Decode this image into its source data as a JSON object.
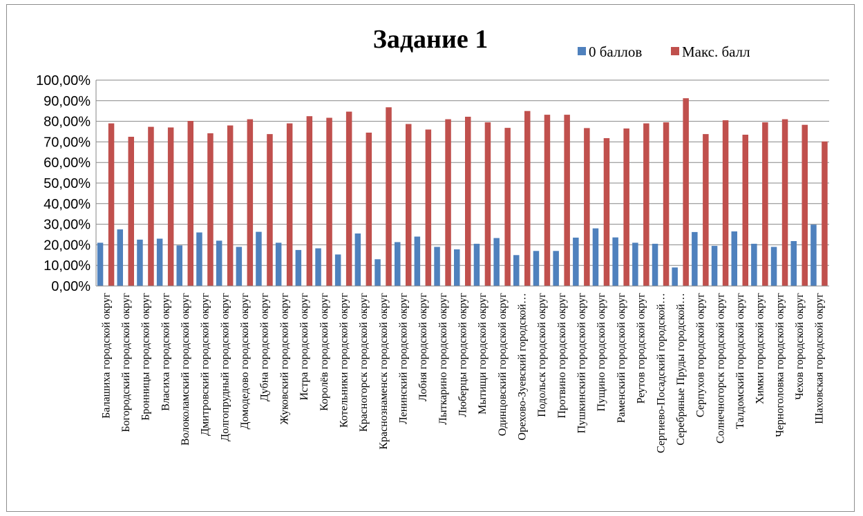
{
  "chart_data": {
    "type": "bar",
    "title": "Задание 1",
    "xlabel": "",
    "ylabel": "",
    "ylim": [
      0,
      1
    ],
    "yticks": [
      "0,00%",
      "10,00%",
      "20,00%",
      "30,00%",
      "40,00%",
      "50,00%",
      "60,00%",
      "70,00%",
      "80,00%",
      "90,00%",
      "100,00%"
    ],
    "grid": true,
    "legend_position": "top-right",
    "categories": [
      "Балашиха городской округ",
      "Богородский городской округ",
      "Бронницы городской округ",
      "Власиха городской округ",
      "Волоколамский городской округ",
      "Дмитровский городской округ",
      "Долгопрудный городской округ",
      "Домодедово городской округ",
      "Дубна городской округ",
      "Жуковский городской округ",
      "Истра городской округ",
      "Королёв городской округ",
      "Котельники городской округ",
      "Красногорск городской округ",
      "Краснознаменск городской округ",
      "Ленинский городской округ",
      "Лобня городской округ",
      "Лыткарино городской округ",
      "Люберцы городской округ",
      "Мытищи городской округ",
      "Одинцовский городской округ",
      "Орехово-Зуевский городской…",
      "Подольск городской округ",
      "Протвино городской округ",
      "Пушкинский городской округ",
      "Пущино городской округ",
      "Раменский городской округ",
      "Реутов городской округ",
      "Сергиево-Посадский городской…",
      "Серебряные Пруды городской…",
      "Серпухов городской округ",
      "Солнечногорск городской округ",
      "Талдомский городской округ",
      "Химки городской округ",
      "Черноголовка городской округ",
      "Чехов городской округ",
      "Шаховская городской округ"
    ],
    "series": [
      {
        "name": "0 баллов",
        "color": "#4f81bd",
        "values": [
          0.21,
          0.275,
          0.225,
          0.23,
          0.197,
          0.26,
          0.22,
          0.19,
          0.263,
          0.21,
          0.175,
          0.183,
          0.153,
          0.255,
          0.13,
          0.213,
          0.24,
          0.19,
          0.178,
          0.205,
          0.233,
          0.15,
          0.17,
          0.17,
          0.235,
          0.28,
          0.236,
          0.21,
          0.205,
          0.09,
          0.262,
          0.195,
          0.265,
          0.205,
          0.19,
          0.218,
          0.298
        ]
      },
      {
        "name": "Макс. балл",
        "color": "#c0504d",
        "values": [
          0.79,
          0.725,
          0.773,
          0.77,
          0.802,
          0.742,
          0.78,
          0.81,
          0.738,
          0.79,
          0.825,
          0.817,
          0.847,
          0.745,
          0.868,
          0.787,
          0.76,
          0.81,
          0.822,
          0.795,
          0.768,
          0.85,
          0.832,
          0.832,
          0.767,
          0.718,
          0.765,
          0.79,
          0.795,
          0.912,
          0.738,
          0.805,
          0.735,
          0.795,
          0.81,
          0.783,
          0.702
        ]
      }
    ]
  }
}
